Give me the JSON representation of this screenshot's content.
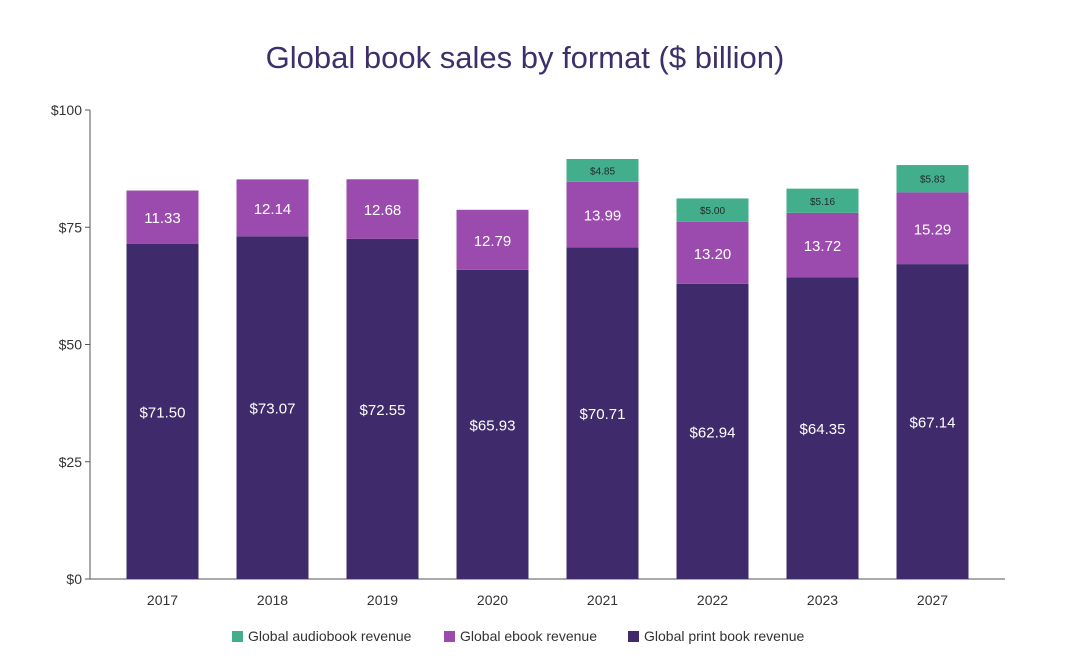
{
  "chart_data": {
    "type": "bar",
    "stacked": true,
    "title": "Global book sales by format ($ billion)",
    "xlabel": "",
    "ylabel": "",
    "ylim": [
      0,
      100
    ],
    "yticks": [
      0,
      25,
      50,
      75,
      100
    ],
    "ytick_labels": [
      "$0",
      "$25",
      "$50",
      "$75",
      "$100"
    ],
    "categories": [
      "2017",
      "2018",
      "2019",
      "2020",
      "2021",
      "2022",
      "2023",
      "2027"
    ],
    "series": [
      {
        "name": "Global print book revenue",
        "color": "#3f2b6b",
        "label_style": "white",
        "values": [
          71.5,
          73.07,
          72.55,
          65.93,
          70.71,
          62.94,
          64.35,
          67.14
        ],
        "labels": [
          "$71.50",
          "$73.07",
          "$72.55",
          "$65.93",
          "$70.71",
          "$62.94",
          "$64.35",
          "$67.14"
        ]
      },
      {
        "name": "Global ebook revenue",
        "color": "#9b4aae",
        "label_style": "white",
        "values": [
          11.33,
          12.14,
          12.68,
          12.79,
          13.99,
          13.2,
          13.72,
          15.29
        ],
        "labels": [
          "11.33",
          "12.14",
          "12.68",
          "12.79",
          "13.99",
          "13.20",
          "13.72",
          "15.29"
        ]
      },
      {
        "name": "Global audiobook revenue",
        "color": "#43ae8c",
        "label_style": "small",
        "values": [
          null,
          null,
          null,
          null,
          4.85,
          5.0,
          5.16,
          5.83
        ],
        "labels": [
          null,
          null,
          null,
          null,
          "$4.85",
          "$5.00",
          "$5.16",
          "$5.83"
        ]
      }
    ],
    "legend": {
      "position": "bottom-center",
      "order": [
        "Global audiobook revenue",
        "Global ebook revenue",
        "Global print book revenue"
      ]
    },
    "grid": false
  }
}
